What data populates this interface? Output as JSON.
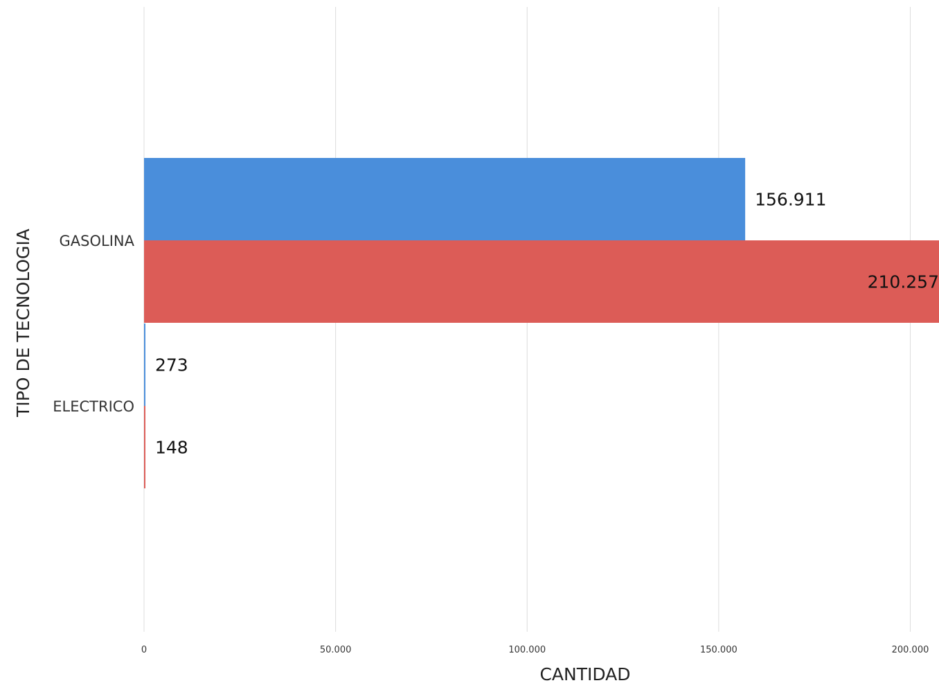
{
  "chart_data": {
    "type": "bar",
    "orientation": "horizontal",
    "categories": [
      "GASOLINA",
      "ELECTRICO"
    ],
    "series": [
      {
        "color": "#4a8edb",
        "values": [
          156911,
          273
        ],
        "labels": [
          "156.911",
          "273"
        ]
      },
      {
        "color": "#dc5c57",
        "values": [
          210257,
          148
        ],
        "labels": [
          "210.257",
          "148"
        ]
      }
    ],
    "xlabel": "CANTIDAD",
    "ylabel": "TIPO DE TECNOLOGIA",
    "xlim": [
      0,
      207500
    ],
    "xticks": [
      0,
      50000,
      100000,
      150000,
      200000
    ],
    "xtick_labels": [
      "0",
      "50.000",
      "100.000",
      "150.000",
      "200.000"
    ],
    "grid": "vertical",
    "legend": "none"
  }
}
